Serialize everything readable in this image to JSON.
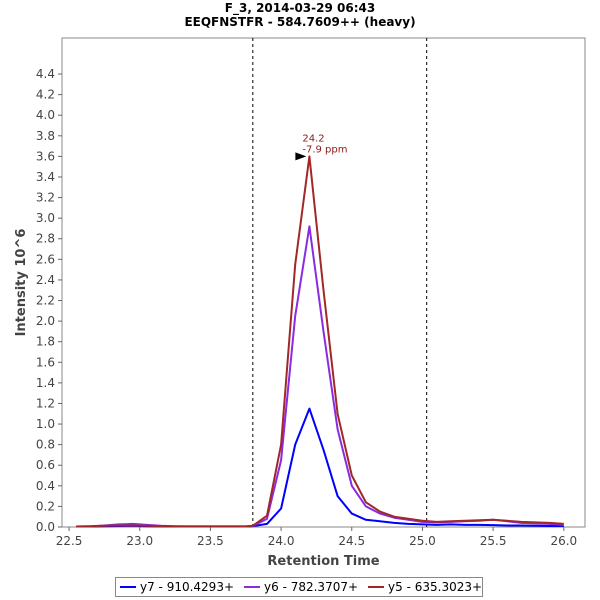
{
  "chart_data": {
    "type": "line",
    "title": "F_3, 2014-03-29 06:43",
    "subtitle": "EEQFNSTFR - 584.7609++ (heavy)",
    "xlabel": "Retention Time",
    "ylabel": "Intensity 10^6",
    "xlim": [
      22.45,
      26.15
    ],
    "ylim": [
      0,
      4.75
    ],
    "x_ticks": [
      "22.5",
      "23.0",
      "23.5",
      "24.0",
      "24.5",
      "25.0",
      "25.5",
      "26.0"
    ],
    "x_tick_values": [
      22.5,
      23.0,
      23.5,
      24.0,
      24.5,
      25.0,
      25.5,
      26.0
    ],
    "y_ticks": [
      "0.0",
      "0.2",
      "0.4",
      "0.6",
      "0.8",
      "1.0",
      "1.2",
      "1.4",
      "1.6",
      "1.8",
      "2.0",
      "2.2",
      "2.4",
      "2.6",
      "2.8",
      "3.0",
      "3.2",
      "3.4",
      "3.6",
      "3.8",
      "4.0",
      "4.2",
      "4.4"
    ],
    "y_tick_values": [
      0.0,
      0.2,
      0.4,
      0.6,
      0.8,
      1.0,
      1.2,
      1.4,
      1.6,
      1.8,
      2.0,
      2.2,
      2.4,
      2.6,
      2.8,
      3.0,
      3.2,
      3.4,
      3.6,
      3.8,
      4.0,
      4.2,
      4.4
    ],
    "integration_bounds": [
      23.8,
      25.03
    ],
    "grid": false,
    "legend_position": "bottom",
    "annotation": {
      "x": 24.2,
      "y": 3.6,
      "line1": "24.2",
      "line2": "-7.9 ppm",
      "color": "#8b1a1a"
    },
    "x": [
      22.55,
      22.65,
      22.75,
      22.85,
      22.95,
      23.05,
      23.15,
      23.25,
      23.35,
      23.45,
      23.55,
      23.65,
      23.75,
      23.8,
      23.9,
      24.0,
      24.1,
      24.2,
      24.3,
      24.4,
      24.5,
      24.6,
      24.7,
      24.8,
      24.9,
      25.0,
      25.1,
      25.2,
      25.3,
      25.4,
      25.5,
      25.6,
      25.7,
      25.8,
      25.9,
      26.0
    ],
    "series": [
      {
        "name": "y7 - 910.4293+",
        "color": "#0000ff",
        "values": [
          0.005,
          0.005,
          0.008,
          0.01,
          0.012,
          0.008,
          0.006,
          0.005,
          0.005,
          0.005,
          0.005,
          0.005,
          0.005,
          0.008,
          0.03,
          0.18,
          0.8,
          1.15,
          0.75,
          0.3,
          0.13,
          0.07,
          0.055,
          0.04,
          0.03,
          0.025,
          0.02,
          0.025,
          0.02,
          0.02,
          0.018,
          0.015,
          0.015,
          0.012,
          0.01,
          0.01
        ]
      },
      {
        "name": "y6 - 782.3707+",
        "color": "#8a2be2",
        "values": [
          0.005,
          0.008,
          0.015,
          0.025,
          0.03,
          0.02,
          0.012,
          0.008,
          0.006,
          0.006,
          0.006,
          0.006,
          0.006,
          0.01,
          0.08,
          0.65,
          2.05,
          2.92,
          1.9,
          0.95,
          0.4,
          0.2,
          0.13,
          0.09,
          0.07,
          0.05,
          0.045,
          0.05,
          0.055,
          0.06,
          0.07,
          0.055,
          0.04,
          0.035,
          0.03,
          0.02
        ]
      },
      {
        "name": "y5 - 635.3023+",
        "color": "#a02828",
        "values": [
          0.005,
          0.008,
          0.012,
          0.015,
          0.015,
          0.012,
          0.008,
          0.006,
          0.006,
          0.006,
          0.006,
          0.006,
          0.006,
          0.012,
          0.11,
          0.8,
          2.55,
          3.6,
          2.3,
          1.1,
          0.5,
          0.24,
          0.15,
          0.1,
          0.08,
          0.06,
          0.05,
          0.055,
          0.06,
          0.065,
          0.07,
          0.06,
          0.05,
          0.045,
          0.04,
          0.03
        ]
      }
    ]
  }
}
